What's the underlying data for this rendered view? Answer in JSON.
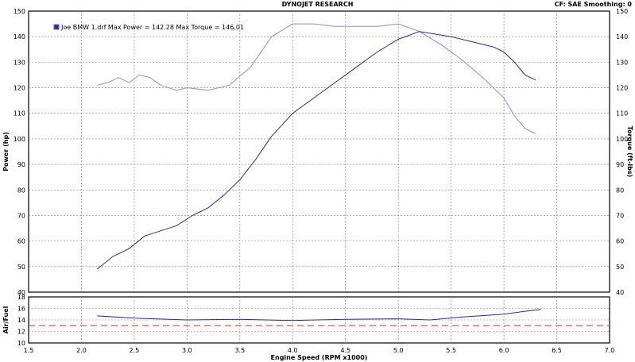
{
  "header": {
    "title": "DYNOJET RESEARCH",
    "correction": "CF: SAE  Smoothing: 0"
  },
  "colors": {
    "power": "#2b2b9a",
    "torque": "#8e8ed6",
    "airfuel": "#2b2b9a",
    "target": "#e05a5a",
    "grid": "#7a7a7a",
    "frame": "#000000"
  },
  "chart_data": [
    {
      "type": "line",
      "panel": "power-torque",
      "ylabel": "Power (hp)",
      "y2label": "Torque (ft-lbs)",
      "ylim": [
        40,
        150
      ],
      "y2lim": [
        40,
        150
      ],
      "yticks": [
        40,
        50,
        60,
        70,
        80,
        90,
        100,
        110,
        120,
        130,
        140,
        150
      ],
      "xlim": [
        1.5,
        7.0
      ],
      "grid": true,
      "legend": {
        "position": "top-left",
        "text": "Joe BMW 1.drf Max Power = 142.28    Max Torque = 146.01"
      },
      "series": [
        {
          "key": "power",
          "x": [
            2.15,
            2.3,
            2.45,
            2.6,
            2.75,
            2.9,
            3.05,
            3.2,
            3.35,
            3.5,
            3.65,
            3.8,
            4.0,
            4.2,
            4.4,
            4.6,
            4.8,
            5.0,
            5.2,
            5.35,
            5.5,
            5.7,
            5.9,
            6.0,
            6.1,
            6.2,
            6.3
          ],
          "y": [
            49,
            54,
            57,
            62,
            64,
            66,
            70,
            73,
            78,
            84,
            92,
            101,
            110,
            116,
            122,
            128,
            134,
            139,
            142,
            141,
            140,
            138,
            136,
            134,
            130,
            125,
            123
          ]
        },
        {
          "key": "torque",
          "x": [
            2.15,
            2.25,
            2.35,
            2.45,
            2.55,
            2.65,
            2.75,
            2.9,
            3.0,
            3.2,
            3.4,
            3.6,
            3.8,
            4.0,
            4.2,
            4.4,
            4.6,
            4.8,
            5.0,
            5.2,
            5.4,
            5.6,
            5.8,
            6.0,
            6.1,
            6.2,
            6.3
          ],
          "y": [
            121,
            122,
            124,
            122,
            125,
            124,
            121,
            119,
            120,
            119,
            121,
            128,
            140,
            145,
            145,
            144,
            144,
            144,
            145,
            142,
            137,
            131,
            124,
            116,
            109,
            104,
            102
          ]
        }
      ]
    },
    {
      "type": "line",
      "panel": "air-fuel",
      "ylabel": "Air/Fuel",
      "ylim": [
        10,
        18
      ],
      "yticks": [
        10,
        12,
        14,
        16,
        18
      ],
      "xlim": [
        1.5,
        7.0
      ],
      "xticks": [
        1.5,
        2.0,
        2.5,
        3.0,
        3.5,
        4.0,
        4.5,
        5.0,
        5.5,
        6.0,
        6.5,
        7.0
      ],
      "xlabel": "Engine Speed (RPM x1000)",
      "grid": true,
      "target": 13,
      "series": [
        {
          "key": "airfuel",
          "x": [
            2.15,
            2.5,
            3.0,
            3.5,
            4.0,
            4.5,
            5.0,
            5.3,
            5.6,
            6.0,
            6.2,
            6.35
          ],
          "y": [
            14.7,
            14.3,
            14.0,
            14.1,
            13.9,
            14.1,
            14.2,
            14.0,
            14.5,
            15.0,
            15.5,
            15.8
          ]
        }
      ]
    }
  ]
}
